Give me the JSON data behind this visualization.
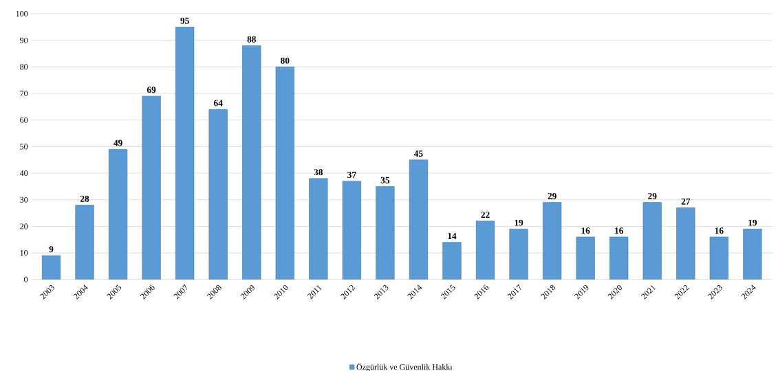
{
  "chart_data": {
    "type": "bar",
    "categories": [
      "2003",
      "2004",
      "2005",
      "2006",
      "2007",
      "2008",
      "2009",
      "2010",
      "2011",
      "2012",
      "2013",
      "2014",
      "2015",
      "2016",
      "2017",
      "2018",
      "2019",
      "2020",
      "2021",
      "2022",
      "2023",
      "2024"
    ],
    "series": [
      {
        "name": "Özgürlük ve Güvenlik Hakkı",
        "color": "#5b9bd5",
        "values": [
          9,
          28,
          49,
          69,
          95,
          64,
          88,
          80,
          38,
          37,
          35,
          45,
          14,
          22,
          19,
          29,
          16,
          16,
          29,
          27,
          16,
          19
        ]
      }
    ],
    "ylim": [
      0,
      100
    ],
    "yticks": [
      0,
      10,
      20,
      30,
      40,
      50,
      60,
      70,
      80,
      90,
      100
    ],
    "grid": "y",
    "legend": "bottom",
    "data_labels": true
  }
}
